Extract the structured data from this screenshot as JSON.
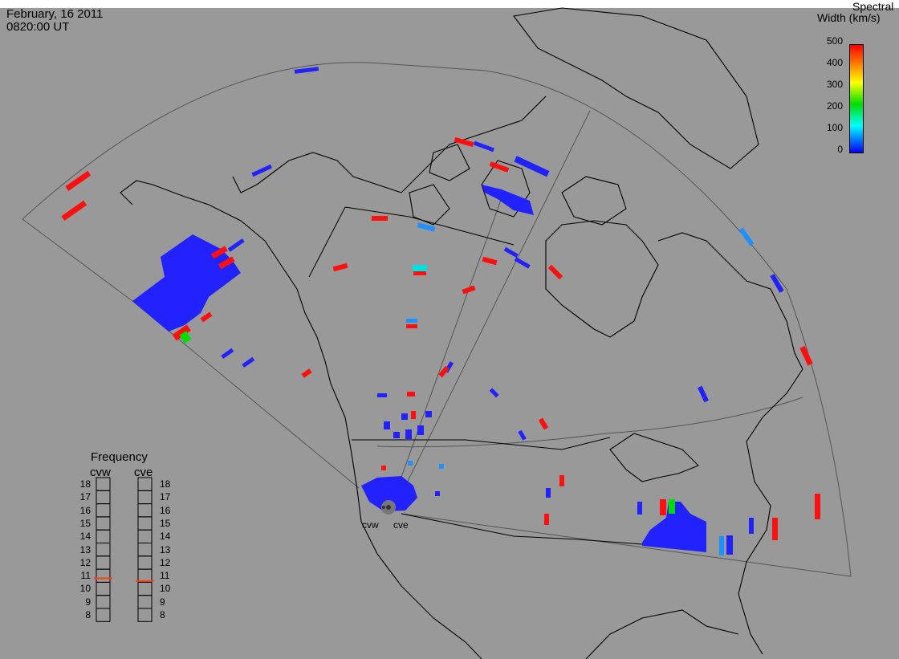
{
  "header": {
    "date": "February, 16 2011",
    "time": "0820:00 UT"
  },
  "colorbar": {
    "title_line1": "Spectral",
    "title_line2": "Width (km/s)",
    "ticks": [
      "500",
      "400",
      "300",
      "200",
      "100",
      "0"
    ],
    "range": [
      0,
      500
    ],
    "colors": [
      "#ff0000",
      "#ffff00",
      "#00e000",
      "#00ffff",
      "#0000ff"
    ]
  },
  "frequency": {
    "title": "Frequency",
    "radar_labels": [
      "cvw",
      "cve"
    ],
    "ticks": [
      "18",
      "17",
      "16",
      "15",
      "14",
      "13",
      "12",
      "11",
      "10",
      "9",
      "8"
    ],
    "range_mhz": [
      8,
      18
    ],
    "cvw_value": 10.8,
    "cve_value": 10.6,
    "marker_color": "#ff4000"
  },
  "sites": {
    "west": "cvw",
    "east": "cve"
  },
  "colors": {
    "background": "#999999",
    "low_width": "#2222ff",
    "mid_width": "#1e90ff",
    "high_width": "#ff1010",
    "green": "#00dd00",
    "cyan": "#00e0e0"
  }
}
